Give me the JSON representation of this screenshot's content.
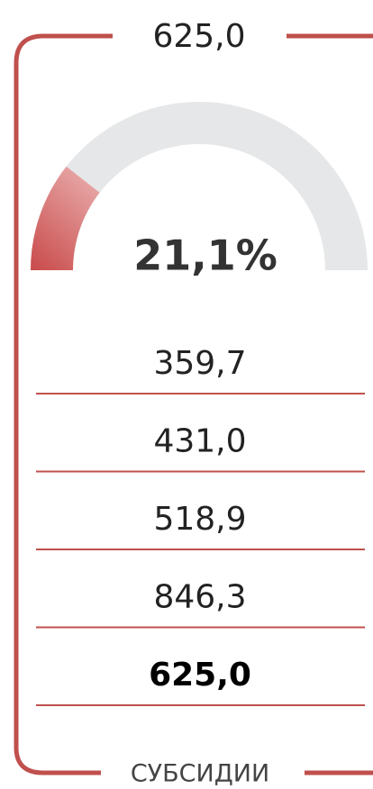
{
  "header": {
    "title": "625,0"
  },
  "gauge": {
    "value": 21.1,
    "label": "21,1%"
  },
  "rows": [
    "359,7",
    "431,0",
    "518,9",
    "846,3",
    "625,0"
  ],
  "footer": {
    "label": "СУБСИДИИ"
  }
}
